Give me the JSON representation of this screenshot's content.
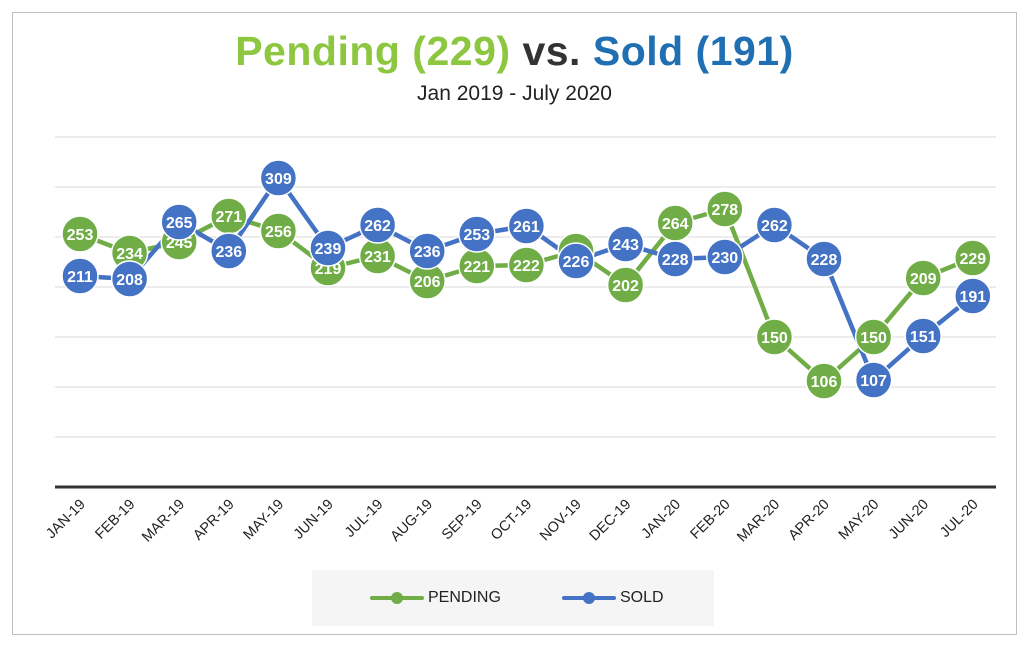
{
  "title": {
    "pending_text": "Pending (229)",
    "vs_text": "vs.",
    "sold_text": "Sold (191)"
  },
  "subtitle": "Jan 2019 - July 2020",
  "colors": {
    "pending": "#70ad47",
    "sold": "#4472c4",
    "title_pending": "#8dc63f",
    "title_sold": "#1f6fb2"
  },
  "legend": {
    "placement": "bottom",
    "pending_label": "PENDING",
    "sold_label": "SOLD"
  },
  "chart_data": {
    "type": "line",
    "title": "Pending (229) vs. Sold (191)",
    "subtitle": "Jan 2019 - July 2020",
    "categories": [
      "JAN-19",
      "FEB-19",
      "MAR-19",
      "APR-19",
      "MAY-19",
      "JUN-19",
      "JUL-19",
      "AUG-19",
      "SEP-19",
      "OCT-19",
      "NOV-19",
      "DEC-19",
      "JAN-20",
      "FEB-20",
      "MAR-20",
      "APR-20",
      "MAY-20",
      "JUN-20",
      "JUL-20"
    ],
    "series": [
      {
        "name": "PENDING",
        "values": [
          253,
          234,
          245,
          271,
          256,
          219,
          231,
          206,
          221,
          222,
          236,
          202,
          264,
          278,
          150,
          106,
          150,
          209,
          229
        ]
      },
      {
        "name": "SOLD",
        "values": [
          211,
          208,
          265,
          236,
          309,
          239,
          262,
          236,
          253,
          261,
          226,
          243,
          228,
          230,
          262,
          228,
          107,
          151,
          191
        ]
      }
    ],
    "ylim": [
      0,
      350
    ],
    "grid": true,
    "xlabel": "",
    "ylabel": ""
  }
}
